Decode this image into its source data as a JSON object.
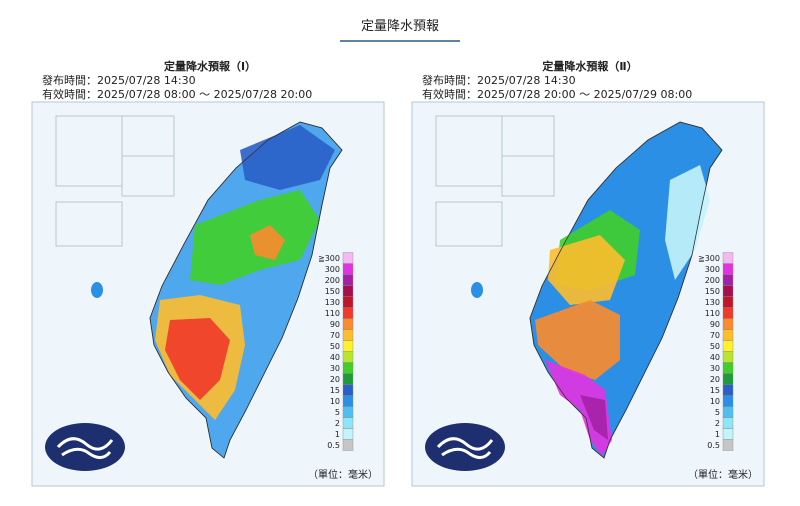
{
  "header": {
    "title": "定量降水預報"
  },
  "maps": [
    {
      "title": "定量降水預報（Ⅰ）",
      "issued": "發布時間：2025/07/28 14:30",
      "valid": "有效時間：2025/07/28 08:00 ～ 2025/07/28 20:00",
      "unit": "（單位：毫米）"
    },
    {
      "title": "定量降水預報（Ⅱ）",
      "issued": "發布時間：2025/07/28 14:30",
      "valid": "有效時間：2025/07/28 20:00 ～ 2025/07/29 08:00",
      "unit": "（單位：毫米）"
    }
  ],
  "legend": {
    "labels": [
      "0.5",
      "1",
      "2",
      "5",
      "10",
      "15",
      "20",
      "30",
      "40",
      "50",
      "70",
      "90",
      "110",
      "130",
      "150",
      "200",
      "300",
      "≧300"
    ],
    "colors": [
      "#c6c6c6",
      "#c4f4fb",
      "#8fe4f6",
      "#4fbff2",
      "#2b8fe6",
      "#2a5fc8",
      "#1e9a3a",
      "#3fcf28",
      "#b6e62e",
      "#fff12b",
      "#fdbd2c",
      "#fc8b2c",
      "#f03a2a",
      "#c1162a",
      "#a4104e",
      "#a421a6",
      "#e233e0",
      "#f7b7f5"
    ]
  }
}
